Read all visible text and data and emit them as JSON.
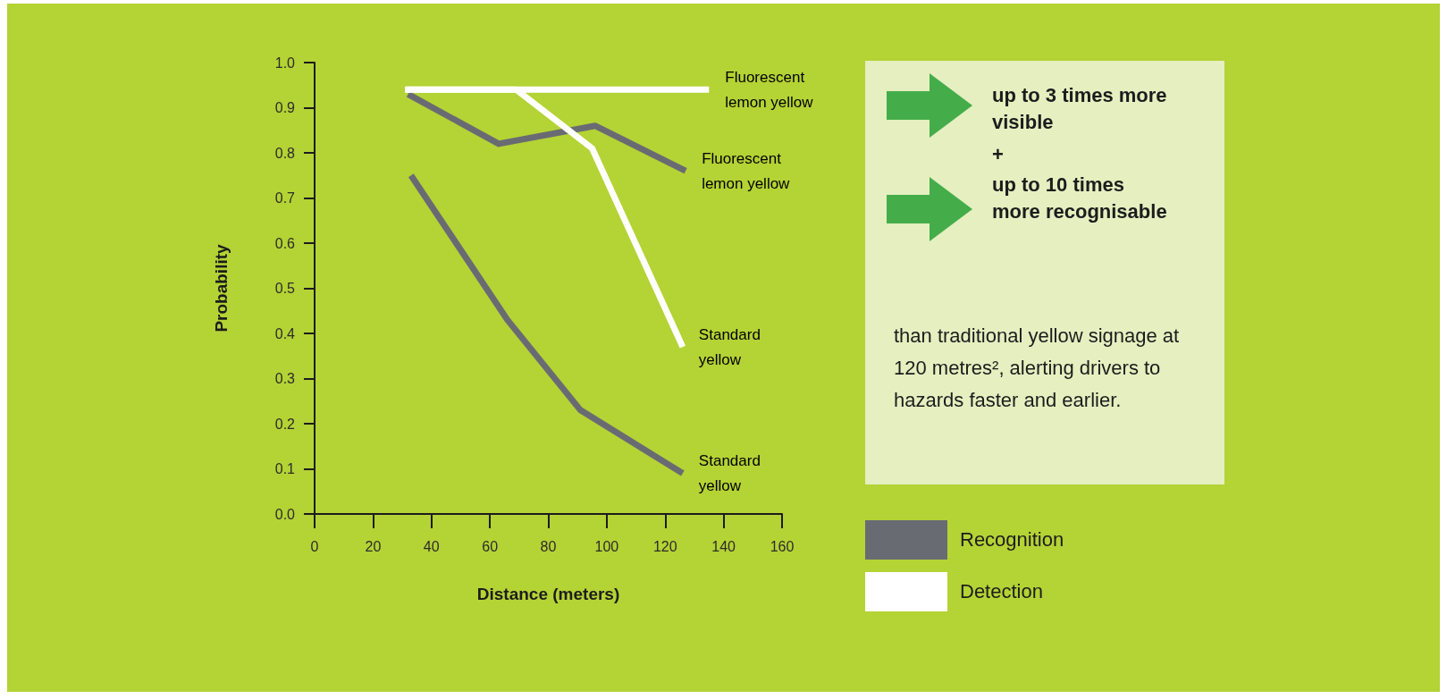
{
  "chart_data": {
    "type": "line",
    "xlabel": "Distance (meters)",
    "ylabel": "Probability",
    "xlim": [
      0,
      160
    ],
    "xticks": [
      0,
      20,
      40,
      60,
      80,
      100,
      120,
      140,
      160
    ],
    "ylim": [
      0,
      1
    ],
    "yticks": [
      {
        "value": 0,
        "label": "0.0"
      },
      {
        "value": 0.1,
        "label": "0.1"
      },
      {
        "value": 0.2,
        "label": "0.2"
      },
      {
        "value": 0.3,
        "label": "0.3"
      },
      {
        "value": 0.4,
        "label": "0.4"
      },
      {
        "value": 0.5,
        "label": "0.5"
      },
      {
        "value": 0.6,
        "label": "0.6"
      },
      {
        "value": 0.7,
        "label": "0.7"
      },
      {
        "value": 0.8,
        "label": "0.8"
      },
      {
        "value": 0.9,
        "label": "0.9"
      },
      {
        "value": 1,
        "label": "1.0"
      }
    ],
    "grid": false,
    "marker": "none",
    "line_style": "solid",
    "legend": "right",
    "series": [
      {
        "name": "Fluorescent lemon yellow",
        "color": "#696b73",
        "x": [
          32,
          63,
          96,
          127
        ],
        "values": [
          0.93,
          0.82,
          0.86,
          0.76
        ]
      },
      {
        "name": "Standard yellow",
        "color": "#696b73",
        "x": [
          33,
          66,
          91,
          126
        ],
        "values": [
          0.75,
          0.43,
          0.23,
          0.09
        ]
      },
      {
        "name": "Fluorescent lemon yellow",
        "color": "#ffffff",
        "x": [
          31,
          135
        ],
        "values": [
          0.94,
          0.94
        ]
      },
      {
        "name": "Standard yellow",
        "color": "#ffffff",
        "x": [
          31,
          69,
          95,
          126
        ],
        "values": [
          0.94,
          0.94,
          0.81,
          0.37
        ]
      }
    ],
    "annotations": [
      "up to 3 times more visible",
      "+",
      "up to 10 times more recognisable",
      "than traditional yellow signage at 120 metres², alerting drivers to hazards faster and earlier.",
      "Recognition",
      "Detection"
    ]
  }
}
